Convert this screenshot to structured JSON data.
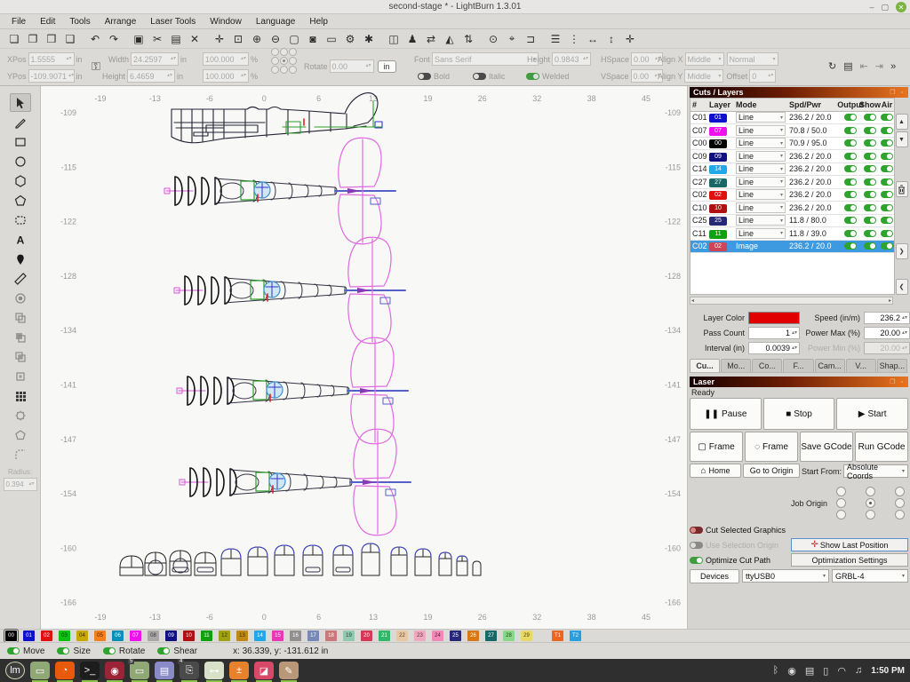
{
  "titlebar": {
    "title": "second-stage * - LightBurn 1.3.01",
    "minimize": "–",
    "maximize": "▢",
    "close": "✕"
  },
  "menu": {
    "items": [
      "File",
      "Edit",
      "Tools",
      "Arrange",
      "Laser Tools",
      "Window",
      "Language",
      "Help"
    ]
  },
  "toolbar": {
    "icons": [
      {
        "name": "new-file-icon",
        "glyph": "❏"
      },
      {
        "name": "open-file-icon",
        "glyph": "❐"
      },
      {
        "name": "save-file-icon",
        "glyph": "❒"
      },
      {
        "name": "import-icon",
        "glyph": "❑"
      },
      {
        "name": "undo-icon",
        "glyph": "↶"
      },
      {
        "name": "redo-icon",
        "glyph": "↷"
      },
      {
        "name": "copy-icon",
        "glyph": "▣"
      },
      {
        "name": "cut-icon",
        "glyph": "✂"
      },
      {
        "name": "paste-icon",
        "glyph": "▤"
      },
      {
        "name": "delete-icon",
        "glyph": "✕"
      },
      {
        "name": "pan-icon",
        "glyph": "✛"
      },
      {
        "name": "zoom-to-fit-icon",
        "glyph": "⊡"
      },
      {
        "name": "zoom-in-icon",
        "glyph": "⊕"
      },
      {
        "name": "zoom-out-icon",
        "glyph": "⊖"
      },
      {
        "name": "frame-selection-icon",
        "glyph": "▢"
      },
      {
        "name": "camera-capture-icon",
        "glyph": "◙"
      },
      {
        "name": "preview-icon",
        "glyph": "▭"
      },
      {
        "name": "device-settings-icon",
        "glyph": "⚙"
      },
      {
        "name": "machine-tools-icon",
        "glyph": "✱"
      },
      {
        "name": "group-icon",
        "glyph": "◫"
      },
      {
        "name": "ungroup-icon",
        "glyph": "♟"
      },
      {
        "name": "mirror-horizontal-icon",
        "glyph": "⇄"
      },
      {
        "name": "mirror-icon",
        "glyph": "◭"
      },
      {
        "name": "mirror-vertical-icon",
        "glyph": "⇅"
      },
      {
        "name": "align-target-icon",
        "glyph": "⊙"
      },
      {
        "name": "position-laser-icon",
        "glyph": "⌖"
      },
      {
        "name": "send-to-laser-icon",
        "glyph": "⊐"
      },
      {
        "name": "distribute-h-icon",
        "glyph": "☰"
      },
      {
        "name": "distribute-v-icon",
        "glyph": "⋮"
      },
      {
        "name": "space-h-icon",
        "glyph": "↔"
      },
      {
        "name": "space-v-icon",
        "glyph": "↕"
      },
      {
        "name": "move-to-position-icon",
        "glyph": "✛"
      }
    ]
  },
  "transform": {
    "xpos_label": "XPos",
    "xpos_value": "1.5555",
    "ypos_label": "YPos",
    "ypos_value": "-109.9071",
    "unit": "in",
    "width_label": "Width",
    "width_value": "24.2597",
    "height_label": "Height",
    "height_value": "6.4659",
    "wscale_value": "100.000",
    "hscale_value": "100.000",
    "pct": "%",
    "rotate_label": "Rotate",
    "rotate_value": "0.00",
    "unit_button": "in"
  },
  "fontbar": {
    "font_label": "Font",
    "font_value": "Sans Serif",
    "height_label": "Height",
    "height_value": "0.9843",
    "bold": "Bold",
    "italic": "Italic",
    "upper_case": "Upper Case",
    "distort": "Distort",
    "welded": "Welded",
    "hspace_label": "HSpace",
    "hspace_value": "0.00",
    "vspace_label": "VSpace",
    "vspace_value": "0.00",
    "alignx_label": "Align X",
    "alignx_value": "Middle",
    "style_value": "Normal",
    "aligny_label": "Align Y",
    "aligny_value": "Middle",
    "offset_label": "Offset",
    "offset_value": "0",
    "sync_icon": "↻",
    "print_icon": "▤",
    "align_left_icon": "⇤",
    "align_right_icon": "⇥",
    "overflow_icon": "»"
  },
  "tools": {
    "items": [
      "select",
      "draw-lines",
      "rectangle",
      "ellipse",
      "polygon",
      "edit-nodes",
      "rounded-rect",
      "text",
      "position-pin",
      "measure",
      "offset-shapes",
      "boolean-union",
      "boolean-subtract",
      "boolean-intersect",
      "cut-shapes",
      "grid-array",
      "circular-array",
      "polygon-outline",
      "radius-corner"
    ],
    "radius_label": "Radius:",
    "radius_value": "0.394"
  },
  "canvas": {
    "h_ticks": [
      "-19",
      "-13",
      "-6",
      "0",
      "6",
      "13",
      "19",
      "26",
      "32",
      "38",
      "45"
    ],
    "v_ticks": [
      "-109",
      "-115",
      "-122",
      "-128",
      "-134",
      "-141",
      "-147",
      "-154",
      "-160",
      "-166"
    ]
  },
  "cuts": {
    "title": "Cuts / Layers",
    "headers": [
      "#",
      "Layer",
      "Mode",
      "Spd/Pwr",
      "Output",
      "Show",
      "Air"
    ],
    "rows": [
      {
        "id": "C01",
        "num": "01",
        "color": "#0f0fd0",
        "mode": "Line",
        "spd": "236.2 / 20.0",
        "selected": false
      },
      {
        "id": "C07",
        "num": "07",
        "color": "#f010f0",
        "mode": "Line",
        "spd": "70.8 / 50.0",
        "selected": false
      },
      {
        "id": "C00",
        "num": "00",
        "color": "#000000",
        "mode": "Line",
        "spd": "70.9 / 95.0",
        "selected": false
      },
      {
        "id": "C09",
        "num": "09",
        "color": "#101080",
        "mode": "Line",
        "spd": "236.2 / 20.0",
        "selected": false
      },
      {
        "id": "C14",
        "num": "14",
        "color": "#20a8e8",
        "mode": "Line",
        "spd": "236.2 / 20.0",
        "selected": false
      },
      {
        "id": "C27",
        "num": "27",
        "color": "#186868",
        "mode": "Line",
        "spd": "236.2 / 20.0",
        "selected": false
      },
      {
        "id": "C02",
        "num": "02",
        "color": "#e01010",
        "mode": "Line",
        "spd": "236.2 / 20.0",
        "selected": false
      },
      {
        "id": "C10",
        "num": "10",
        "color": "#b01010",
        "mode": "Line",
        "spd": "236.2 / 20.0",
        "selected": false
      },
      {
        "id": "C25",
        "num": "25",
        "color": "#282878",
        "mode": "Line",
        "spd": "11.8 / 80.0",
        "selected": false
      },
      {
        "id": "C11",
        "num": "11",
        "color": "#10a010",
        "mode": "Line",
        "spd": "11.8 / 39.0",
        "selected": false
      },
      {
        "id": "C02",
        "num": "02",
        "color": "#cc4455",
        "mode": "Image",
        "spd": "236.2 / 20.0",
        "selected": true
      }
    ],
    "props": {
      "layer_color_label": "Layer Color",
      "layer_color": "#e00000",
      "speed_label": "Speed (in/m)",
      "speed_value": "236.2",
      "pass_label": "Pass Count",
      "pass_value": "1",
      "powermax_label": "Power Max (%)",
      "powermax_value": "20.00",
      "interval_label": "Interval (in)",
      "interval_value": "0.0039",
      "powermin_label": "Power Min (%)",
      "powermin_value": "20.00"
    },
    "tabs": [
      "Cu...",
      "Mo...",
      "Co...",
      "F...",
      "Cam...",
      "V...",
      "Shap..."
    ]
  },
  "laser": {
    "title": "Laser",
    "status": "Ready",
    "pause": "Pause",
    "stop": "Stop",
    "start": "Start",
    "frame_square": "Frame",
    "frame_circle": "Frame",
    "save_gcode": "Save GCode",
    "run_gcode": "Run GCode",
    "home": "Home",
    "goto_origin": "Go to Origin",
    "start_from_label": "Start From:",
    "start_from_value": "Absolute Coords",
    "job_origin_label": "Job Origin",
    "cut_selected": "Cut Selected Graphics",
    "use_selection": "Use Selection Origin",
    "optimize": "Optimize Cut Path",
    "show_last": "Show Last Position",
    "opt_settings": "Optimization Settings",
    "devices": "Devices",
    "port_value": "ttyUSB0",
    "device_value": "GRBL-4"
  },
  "palette": {
    "items": [
      {
        "label": "00",
        "color": "#000000",
        "text": "#ffffff",
        "selected": true
      },
      {
        "label": "01",
        "color": "#0f0fd0",
        "text": "#ffffff"
      },
      {
        "label": "02",
        "color": "#e01010",
        "text": "#ffffff"
      },
      {
        "label": "03",
        "color": "#10c010",
        "text": "#003300"
      },
      {
        "label": "04",
        "color": "#c8a800",
        "text": "#332a00"
      },
      {
        "label": "05",
        "color": "#f08020",
        "text": "#4d2600"
      },
      {
        "label": "06",
        "color": "#0890b8",
        "text": "#ffffff"
      },
      {
        "label": "07",
        "color": "#f010f0",
        "text": "#ffffff"
      },
      {
        "label": "08",
        "color": "#a8a8a8",
        "text": "#333333"
      },
      {
        "label": "09",
        "color": "#101080",
        "text": "#ffffff"
      },
      {
        "label": "10",
        "color": "#b01010",
        "text": "#ffffff"
      },
      {
        "label": "11",
        "color": "#10a010",
        "text": "#ffffff"
      },
      {
        "label": "12",
        "color": "#a0a010",
        "text": "#333300"
      },
      {
        "label": "13",
        "color": "#c08818",
        "text": "#3d2b00"
      },
      {
        "label": "14",
        "color": "#20a8e8",
        "text": "#ffffff"
      },
      {
        "label": "15",
        "color": "#e838b8",
        "text": "#ffffff"
      },
      {
        "label": "16",
        "color": "#909090",
        "text": "#ffffff"
      },
      {
        "label": "17",
        "color": "#7888b8",
        "text": "#ffffff"
      },
      {
        "label": "18",
        "color": "#c87878",
        "text": "#ffffff"
      },
      {
        "label": "19",
        "color": "#90c8b0",
        "text": "#1f4534"
      },
      {
        "label": "20",
        "color": "#d83858",
        "text": "#ffffff"
      },
      {
        "label": "21",
        "color": "#30b868",
        "text": "#ffffff"
      },
      {
        "label": "22",
        "color": "#e8c8a0",
        "text": "#5a4426"
      },
      {
        "label": "23",
        "color": "#f0a8c0",
        "text": "#5c2c3d"
      },
      {
        "label": "24",
        "color": "#f088b8",
        "text": "#5c1f3a"
      },
      {
        "label": "25",
        "color": "#282878",
        "text": "#ffffff"
      },
      {
        "label": "26",
        "color": "#d87818",
        "text": "#ffffff"
      },
      {
        "label": "27",
        "color": "#186868",
        "text": "#ffffff"
      },
      {
        "label": "28",
        "color": "#88d888",
        "text": "#1d4a1d"
      },
      {
        "label": "29",
        "color": "#e8d868",
        "text": "#4a4316"
      },
      {
        "label": "T1",
        "color": "#e86820",
        "text": "#ffffff",
        "tool": true
      },
      {
        "label": "T2",
        "color": "#28a0e0",
        "text": "#ffffff",
        "tool": true
      }
    ]
  },
  "status": {
    "toggles": [
      "Move",
      "Size",
      "Rotate",
      "Shear"
    ],
    "coords": "x: 36.339, y: -131.612 in"
  },
  "taskbar": {
    "apps": [
      {
        "name": "mint-menu",
        "glyph": "lm",
        "color": "#3c3c3c",
        "ring": true
      },
      {
        "name": "file-manager",
        "glyph": "▭",
        "color": "#8fa876",
        "open": true
      },
      {
        "name": "firefox",
        "glyph": "◔",
        "color": "#e8590c",
        "open": true
      },
      {
        "name": "terminal",
        "glyph": ">_",
        "color": "#1d1d1d",
        "open": true
      },
      {
        "name": "tor-browser",
        "glyph": "◉",
        "color": "#9b2335",
        "open": true
      },
      {
        "name": "file-manager-2",
        "glyph": "▭",
        "color": "#8fa876",
        "badge": "5",
        "open": true
      },
      {
        "name": "text-editor",
        "glyph": "▤",
        "color": "#8a8ac8",
        "open": true
      },
      {
        "name": "print-queue",
        "glyph": "⎘",
        "color": "#4a4a4a",
        "badge": "4",
        "open": true
      },
      {
        "name": "settings-toggles",
        "glyph": "⊶",
        "color": "#d8e0c8",
        "open": true
      },
      {
        "name": "calculator",
        "glyph": "±",
        "color": "#e8812c",
        "open": true
      },
      {
        "name": "image-viewer",
        "glyph": "◪",
        "color": "#d84868",
        "open": true
      },
      {
        "name": "gimp",
        "glyph": "✎",
        "color": "#b89878",
        "open": true
      }
    ],
    "tray": [
      {
        "name": "bluetooth-icon",
        "glyph": "ᛒ"
      },
      {
        "name": "security-icon",
        "glyph": "◉"
      },
      {
        "name": "printer-icon",
        "glyph": "▤"
      },
      {
        "name": "battery-icon",
        "glyph": "▯"
      },
      {
        "name": "wifi-icon",
        "glyph": "◠"
      },
      {
        "name": "media-icon",
        "glyph": "♫"
      }
    ],
    "time": "1:50 PM"
  }
}
